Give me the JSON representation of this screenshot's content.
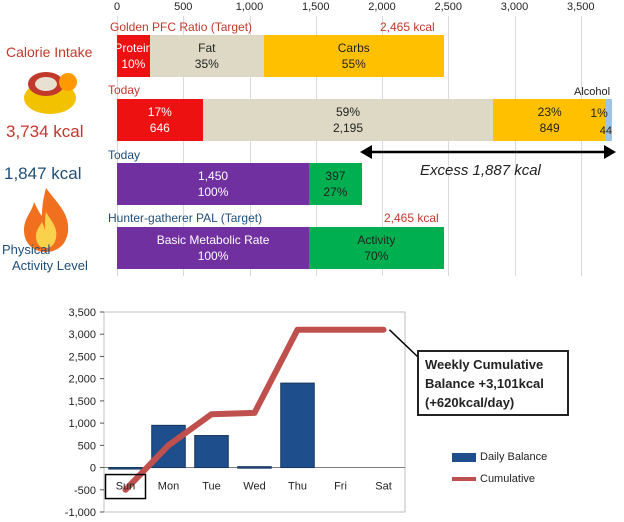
{
  "top": {
    "axis_ticks": [
      "0",
      "500",
      "1,000",
      "1,500",
      "2,000",
      "2,500",
      "3,000",
      "3,500"
    ],
    "left": {
      "calorie_title": "Calorie Intake",
      "calorie_value": "3,734 kcal",
      "activity_value": "1,847 kcal",
      "activity_title_line1": "Physical",
      "activity_title_line2": "Activity Level"
    },
    "rows": {
      "pfc_target": {
        "title": "Golden PFC Ratio (Target)",
        "total_label": "2,465 kcal",
        "segments": [
          {
            "label": "Protein",
            "value_text": "10%",
            "kcal": 246.5,
            "color": "#ee1111"
          },
          {
            "label": "Fat",
            "value_text": "35%",
            "kcal": 862.75,
            "color": "#ddd9c4"
          },
          {
            "label": "Carbs",
            "value_text": "55%",
            "kcal": 1355.75,
            "color": "#ffc000"
          }
        ]
      },
      "today_intake": {
        "title": "Today",
        "alcohol_label": "Alcohol",
        "segments": [
          {
            "pct": "17%",
            "kcal_text": "646",
            "kcal": 646,
            "color": "#ee1111"
          },
          {
            "pct": "59%",
            "kcal_text": "2,195",
            "kcal": 2195,
            "color": "#ddd9c4"
          },
          {
            "pct": "23%",
            "kcal_text": "849",
            "kcal": 849,
            "color": "#ffc000"
          },
          {
            "pct": "1%",
            "kcal_text": "44",
            "kcal": 44,
            "color": "#9dc3e6"
          }
        ],
        "excess_label": "Excess 1,887 kcal"
      },
      "today_activity": {
        "title": "Today",
        "segments": [
          {
            "line1": "1,450",
            "line2": "100%",
            "kcal": 1450,
            "color": "#7030a0"
          },
          {
            "line1": "397",
            "line2": "27%",
            "kcal": 397,
            "color": "#00b050"
          }
        ]
      },
      "pal_target": {
        "title": "Hunter-gatherer  PAL (Target)",
        "total_label": "2,465 kcal",
        "segments": [
          {
            "line1": "Basic Metabolic Rate",
            "line2": "100%",
            "kcal": 1450,
            "color": "#7030a0"
          },
          {
            "line1": "Activity",
            "line2": "70%",
            "kcal": 1015,
            "color": "#00b050"
          }
        ]
      }
    }
  },
  "chart_data": {
    "type": "bar",
    "categories": [
      "Sun",
      "Mon",
      "Tue",
      "Wed",
      "Thu",
      "Fri",
      "Sat"
    ],
    "series": [
      {
        "name": "Daily Balance",
        "type": "bar",
        "values": [
          0,
          950,
          720,
          20,
          1900,
          null,
          null
        ]
      },
      {
        "name": "Cumulative",
        "type": "line",
        "values": [
          -500,
          500,
          1200,
          1230,
          3100,
          3100,
          3100
        ]
      }
    ],
    "ylim": [
      -1000,
      3500
    ],
    "y_ticks": [
      "-1,000",
      "-500",
      "0",
      "500",
      "1,000",
      "1,500",
      "2,000",
      "2,500",
      "3,000",
      "3,500"
    ],
    "legend": [
      "Daily Balance",
      "Cumulative"
    ],
    "legend_position": "right",
    "annotation": {
      "line1": "Weekly Cumulative",
      "line2": "Balance +3,101kcal",
      "line3": "(+620kcal/day)"
    },
    "colors": {
      "bar": "#1f4e8c",
      "line": "#c0504d"
    }
  }
}
